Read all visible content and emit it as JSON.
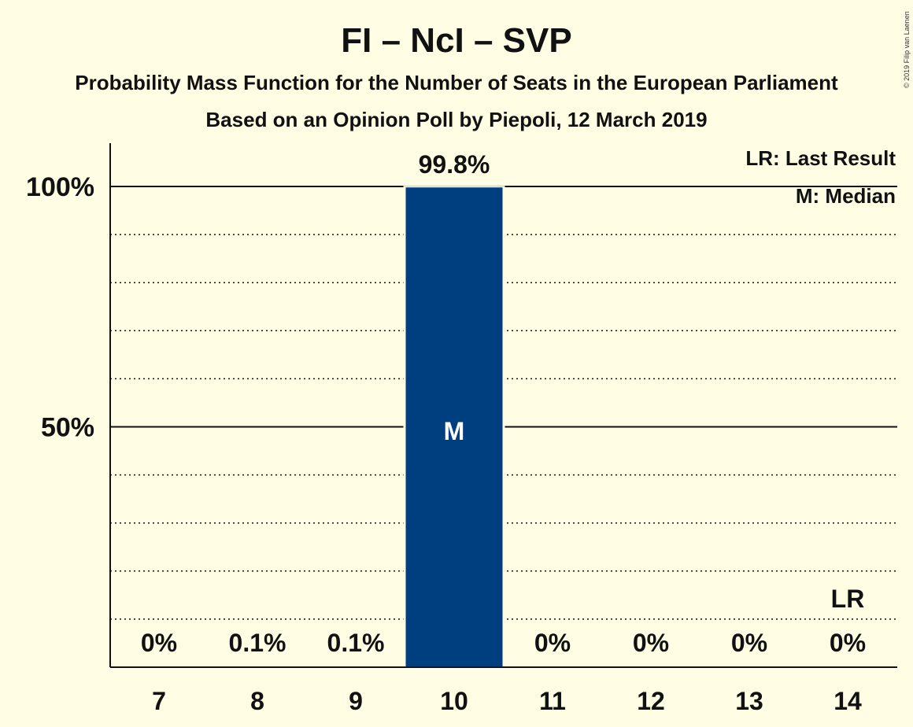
{
  "header": {
    "title": "FI – NcI – SVP",
    "subtitle1": "Probability Mass Function for the Number of Seats in the European Parliament",
    "subtitle2": "Based on an Opinion Poll by Piepoli, 12 March 2019",
    "copyright": "© 2019 Filip van Laenen"
  },
  "legend": {
    "last_result": "LR: Last Result",
    "median": "M: Median"
  },
  "colors": {
    "background": "#FFFDE3",
    "bar": "#003F7F",
    "text": "#111111"
  },
  "chart_data": {
    "type": "bar",
    "title": "FI – NcI – SVP",
    "categories": [
      "7",
      "8",
      "9",
      "10",
      "11",
      "12",
      "13",
      "14"
    ],
    "values": [
      0,
      0.1,
      0.1,
      99.8,
      0,
      0,
      0,
      0
    ],
    "value_labels": [
      "0%",
      "0.1%",
      "0.1%",
      "99.8%",
      "0%",
      "0%",
      "0%",
      "0%"
    ],
    "ylim": [
      0,
      110
    ],
    "yticks": [
      {
        "value": 50,
        "label": "50%"
      },
      {
        "value": 100,
        "label": "100%"
      }
    ],
    "minor_gridlines": [
      10,
      20,
      30,
      40,
      60,
      70,
      80,
      90
    ],
    "median_category": "10",
    "median_marker": "M",
    "last_result_category": "14",
    "last_result_marker": "LR",
    "legend_placement": "top-right"
  }
}
